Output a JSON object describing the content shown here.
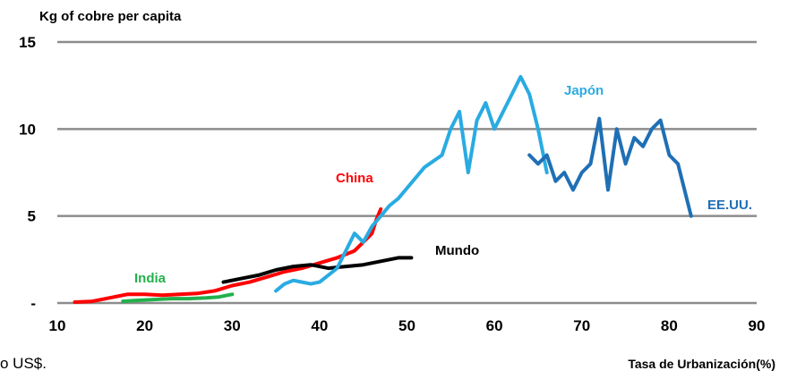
{
  "chart_data": {
    "type": "line",
    "title": "",
    "ylabel": "Kg of cobre per capita",
    "xlabel": "Tasa de Urbanización(%)",
    "footnote": "o US$.",
    "xlim": [
      10,
      90
    ],
    "ylim": [
      0,
      15
    ],
    "x_ticks": [
      "10",
      "20",
      "30",
      "40",
      "50",
      "60",
      "70",
      "80",
      "90"
    ],
    "y_ticks": [
      "-",
      "5",
      "10",
      "15"
    ],
    "y_tick_values": [
      0,
      5,
      10,
      15
    ],
    "x_tick_values": [
      10,
      20,
      30,
      40,
      50,
      60,
      70,
      80,
      90
    ],
    "grid": "horizontal",
    "legend": "inline labels",
    "series": [
      {
        "name": "India",
        "color": "#22b14c",
        "x": [
          17.5,
          19,
          21,
          23,
          25,
          27,
          28.5,
          29.5,
          30
        ],
        "y": [
          0.1,
          0.15,
          0.2,
          0.25,
          0.25,
          0.3,
          0.35,
          0.45,
          0.5
        ]
      },
      {
        "name": "China",
        "color": "#ff0000",
        "x": [
          12,
          14,
          16,
          18,
          20,
          22,
          24,
          26,
          28,
          30,
          32,
          34,
          36,
          38,
          40,
          42,
          43,
          44,
          45,
          46,
          46.5,
          47
        ],
        "y": [
          0.05,
          0.1,
          0.3,
          0.5,
          0.5,
          0.45,
          0.5,
          0.55,
          0.7,
          1.0,
          1.2,
          1.5,
          1.8,
          2.0,
          2.3,
          2.6,
          2.8,
          3.0,
          3.5,
          4.0,
          4.8,
          5.4
        ]
      },
      {
        "name": "Mundo",
        "color": "#000000",
        "x": [
          29,
          31,
          33,
          35,
          37,
          39,
          41,
          43,
          45,
          47,
          49,
          50.5
        ],
        "y": [
          1.2,
          1.4,
          1.6,
          1.9,
          2.1,
          2.2,
          2.0,
          2.1,
          2.2,
          2.4,
          2.6,
          2.6
        ]
      },
      {
        "name": "Japón",
        "color": "#29abe2",
        "x": [
          35,
          36,
          37,
          38,
          39,
          40,
          41,
          42,
          43,
          44,
          45,
          46,
          47,
          48,
          49,
          50,
          52,
          54,
          55,
          56,
          57,
          58,
          59,
          60,
          61,
          62,
          63,
          64,
          65,
          66
        ],
        "y": [
          0.7,
          1.1,
          1.3,
          1.2,
          1.1,
          1.2,
          1.6,
          2.0,
          3.0,
          4.0,
          3.5,
          4.4,
          5.0,
          5.6,
          6.0,
          6.6,
          7.8,
          8.5,
          10.0,
          11.0,
          7.5,
          10.5,
          11.5,
          10.0,
          11.0,
          12.0,
          13.0,
          12.0,
          10.0,
          7.5
        ]
      },
      {
        "name": "EE.UU.",
        "color": "#1f6fb5",
        "x": [
          64,
          65,
          66,
          67,
          68,
          69,
          70,
          71,
          72,
          73,
          74,
          75,
          76,
          77,
          78,
          79,
          80,
          81,
          82,
          82.5
        ],
        "y": [
          8.5,
          8.0,
          8.5,
          7.0,
          7.5,
          6.5,
          7.5,
          8.0,
          10.6,
          6.5,
          10.0,
          8.0,
          9.5,
          9.0,
          10.0,
          10.5,
          8.5,
          8.0,
          6.0,
          5.0
        ]
      }
    ]
  }
}
